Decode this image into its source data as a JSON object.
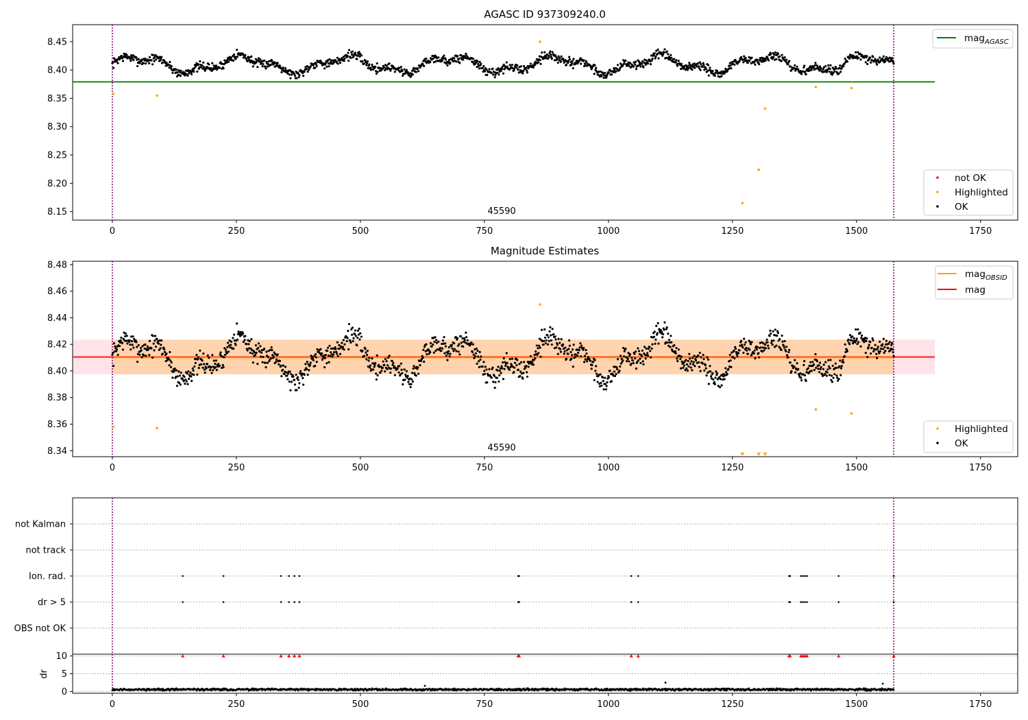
{
  "chart_data": [
    {
      "type": "scatter",
      "title": "AGASC ID 937309240.0",
      "xlim": [
        -80,
        1825
      ],
      "ylim": [
        8.135,
        8.48
      ],
      "xticks": [
        0,
        250,
        500,
        750,
        1000,
        1250,
        1500,
        1750
      ],
      "yticks": [
        8.15,
        8.2,
        8.25,
        8.3,
        8.35,
        8.4,
        8.45
      ],
      "yticklabels": [
        "8.15",
        "8.20",
        "8.25",
        "8.30",
        "8.35",
        "8.40",
        "8.45"
      ],
      "obsid_label": "45590",
      "obsid_x": 750,
      "obsid_boundaries": [
        0,
        1575
      ],
      "reference_lines": [
        {
          "name": "mag_AGASC",
          "y": 8.379,
          "x_range": [
            -80,
            1658
          ],
          "color": "#008000"
        }
      ],
      "legend_top": [
        {
          "label": "mag",
          "subscript": "AGASC",
          "color": "#008000"
        }
      ],
      "legend_bottom": [
        {
          "label": "not OK",
          "color": "#ff0000"
        },
        {
          "label": "Highlighted",
          "color": "#ffa500"
        },
        {
          "label": "OK",
          "color": "#000000"
        }
      ],
      "series": [
        {
          "name": "OK",
          "color": "#000000",
          "generator": {
            "x_start": 0,
            "x_end": 1575,
            "count": 1400,
            "base": 8.41,
            "wiggle_amplitude": 0.012,
            "wiggle_period": 210,
            "noise": 0.008,
            "seed": 7
          }
        },
        {
          "name": "Highlighted",
          "color": "#ffa500",
          "points": [
            [
              2,
              8.358
            ],
            [
              90,
              8.355
            ],
            [
              1270,
              8.165
            ],
            [
              1303,
              8.224
            ],
            [
              1316,
              8.332
            ],
            [
              1418,
              8.37
            ],
            [
              1490,
              8.368
            ],
            [
              862,
              8.45
            ]
          ]
        }
      ]
    },
    {
      "type": "scatter",
      "title": "Magnitude Estimates",
      "xlim": [
        -80,
        1825
      ],
      "ylim": [
        8.3355,
        8.4825
      ],
      "xticks": [
        0,
        250,
        500,
        750,
        1000,
        1250,
        1500,
        1750
      ],
      "yticks": [
        8.34,
        8.36,
        8.38,
        8.4,
        8.42,
        8.44,
        8.46,
        8.48
      ],
      "yticklabels": [
        "8.34",
        "8.36",
        "8.38",
        "8.40",
        "8.42",
        "8.44",
        "8.46",
        "8.48"
      ],
      "obsid_label": "45590",
      "obsid_x": 750,
      "obsid_boundaries": [
        0,
        1575
      ],
      "reference_lines": [
        {
          "name": "mag",
          "y": 8.4105,
          "x_range": [
            -80,
            1658
          ],
          "color": "#ff0000"
        },
        {
          "name": "mag_OBSID",
          "y": 8.41,
          "x_range": [
            0,
            1575
          ],
          "color": "#ffa500"
        }
      ],
      "bands": [
        {
          "y_range": [
            8.3975,
            8.4235
          ],
          "x_range": [
            -80,
            1658
          ],
          "color": "#ffc0cb"
        },
        {
          "y_range": [
            8.3975,
            8.4235
          ],
          "x_range": [
            0,
            1575
          ],
          "color": "#ffa500"
        }
      ],
      "legend_top": [
        {
          "label": "mag",
          "subscript": "OBSID",
          "color": "#ffa500"
        },
        {
          "label": "mag",
          "subscript": "",
          "color": "#ff0000"
        }
      ],
      "legend_bottom": [
        {
          "label": "Highlighted",
          "color": "#ffa500"
        },
        {
          "label": "OK",
          "color": "#000000"
        }
      ],
      "series": [
        {
          "name": "OK",
          "color": "#000000",
          "generator": {
            "x_start": 0,
            "x_end": 1575,
            "count": 1400,
            "base": 8.41,
            "wiggle_amplitude": 0.012,
            "wiggle_period": 210,
            "noise": 0.008,
            "seed": 7
          }
        },
        {
          "name": "Highlighted",
          "color": "#ffa500",
          "points": [
            [
              2,
              8.358
            ],
            [
              90,
              8.357
            ],
            [
              1418,
              8.371
            ],
            [
              1490,
              8.368
            ],
            [
              862,
              8.45
            ]
          ]
        },
        {
          "name": "Highlighted (below range)",
          "color": "#ffa500",
          "marker": "triangle-down",
          "points": [
            [
              1270,
              8.3375
            ],
            [
              1303,
              8.3375
            ],
            [
              1316,
              8.3375
            ]
          ]
        }
      ]
    },
    {
      "type": "scatter",
      "title": "",
      "xlim": [
        -80,
        1825
      ],
      "categories": [
        "not Kalman",
        "not track",
        "Ion. rad.",
        "dr > 5",
        "OBS not OK"
      ],
      "flag_points_x": [
        142,
        224,
        340,
        356,
        367,
        377,
        818,
        820,
        1046,
        1060,
        1364,
        1366,
        1388,
        1392,
        1396,
        1400,
        1464,
        1575
      ],
      "flag_rows": [
        "Ion. rad.",
        "dr > 5"
      ],
      "obsid_boundaries": [
        0,
        1575
      ]
    },
    {
      "type": "scatter",
      "title": "",
      "xlim": [
        -80,
        1825
      ],
      "ylim": [
        -0.5,
        10.5
      ],
      "ylabel": "dr",
      "xticks": [
        0,
        250,
        500,
        750,
        1000,
        1250,
        1500,
        1750
      ],
      "yticks": [
        0,
        5,
        10
      ],
      "yticklabels": [
        "0",
        "5",
        "10"
      ],
      "obsid_boundaries": [
        0,
        1575
      ],
      "marker_color_clipped": "#ff0000",
      "clipped_points_x": [
        142,
        224,
        340,
        356,
        367,
        377,
        818,
        820,
        1046,
        1060,
        1364,
        1366,
        1388,
        1392,
        1396,
        1400,
        1464,
        1575
      ],
      "outlier_points": [
        [
          1115,
          2.5
        ],
        [
          1553,
          2.2
        ],
        [
          630,
          1.6
        ]
      ],
      "generator": {
        "x_start": 0,
        "x_end": 1575,
        "count": 1400,
        "base": 0.55,
        "noise": 0.35,
        "seed": 11
      }
    }
  ]
}
